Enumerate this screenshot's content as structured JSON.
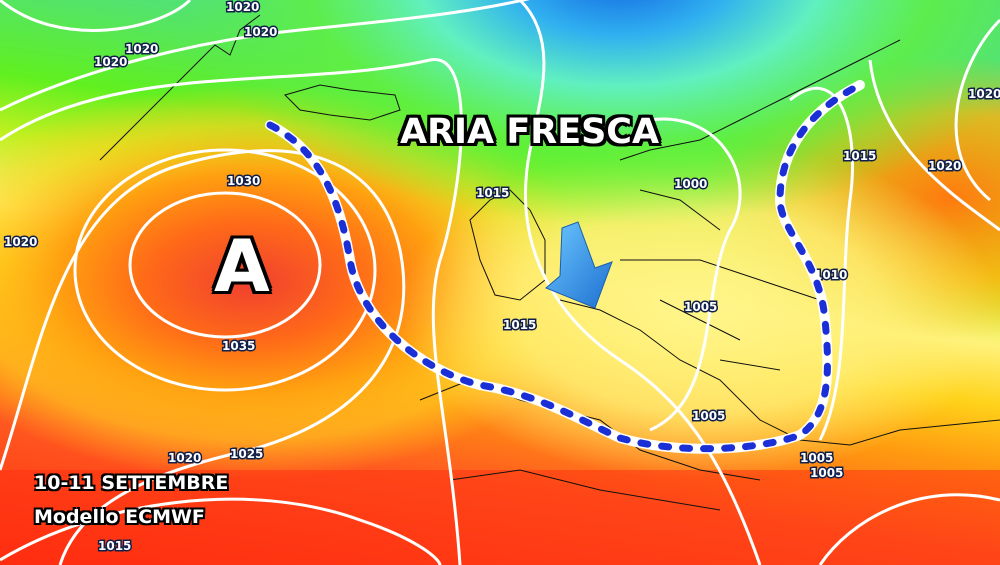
{
  "title": "ARIA FRESCA",
  "high_pressure_label": "A",
  "caption": {
    "dates": "10-11 SETTEMBRE",
    "model": "Modello ECMWF"
  },
  "isobar_labels": [
    "1020",
    "1020",
    "1020",
    "1020",
    "1030",
    "1020",
    "1035",
    "1025",
    "1020",
    "1015",
    "1015",
    "1015",
    "1000",
    "1005",
    "1005",
    "1005",
    "1005",
    "1010",
    "1015",
    "1020",
    "1020"
  ],
  "colors": {
    "trough_line": "#1a2fd6",
    "arrow": "#2f8fe0",
    "isobar": "#ffffff",
    "high_core": "#f04030",
    "cold_air": "#2aa0f0"
  },
  "icons": {
    "arrow": "cold-air-arrow-icon"
  }
}
